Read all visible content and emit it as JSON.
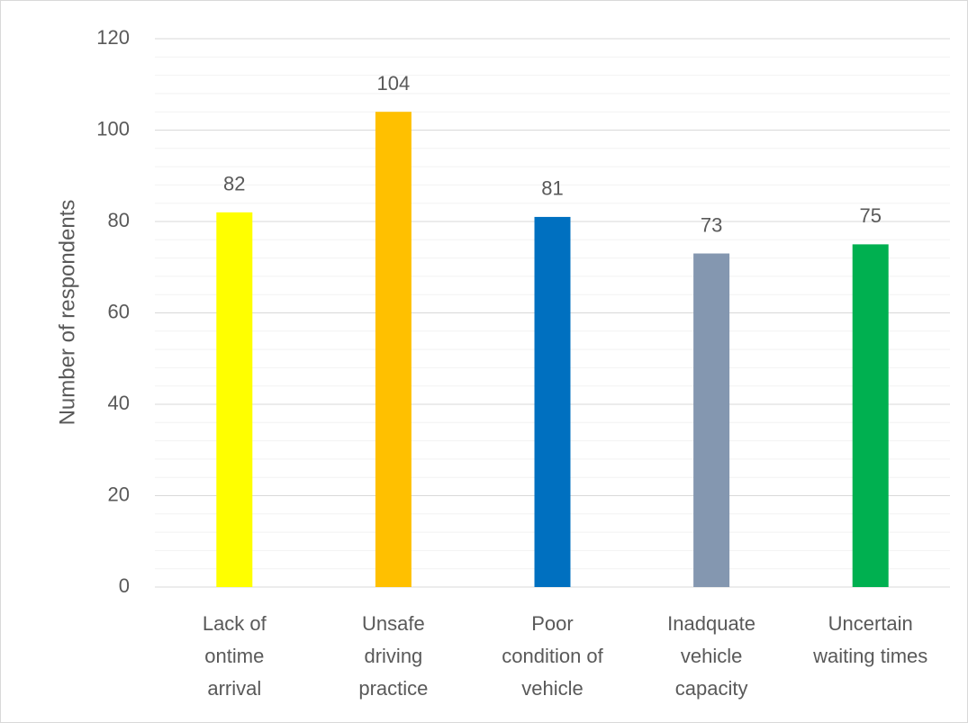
{
  "chart_data": {
    "type": "bar",
    "ylabel": "Number of respondents",
    "categories": [
      [
        "Lack of",
        "ontime",
        "arrival"
      ],
      [
        "Unsafe",
        "driving",
        "practice"
      ],
      [
        "Poor",
        "condition of",
        "vehicle"
      ],
      [
        "Inadquate",
        "vehicle",
        "capacity"
      ],
      [
        "Uncertain",
        "waiting times"
      ]
    ],
    "values": [
      82,
      104,
      81,
      73,
      75
    ],
    "colors": [
      "#ffff00",
      "#ffc000",
      "#0070c0",
      "#8497b0",
      "#00b050"
    ],
    "ylim": [
      0,
      120
    ],
    "yticks": [
      0,
      20,
      40,
      60,
      80,
      100,
      120
    ],
    "grid": true,
    "minor_grid_divisions": 5
  }
}
